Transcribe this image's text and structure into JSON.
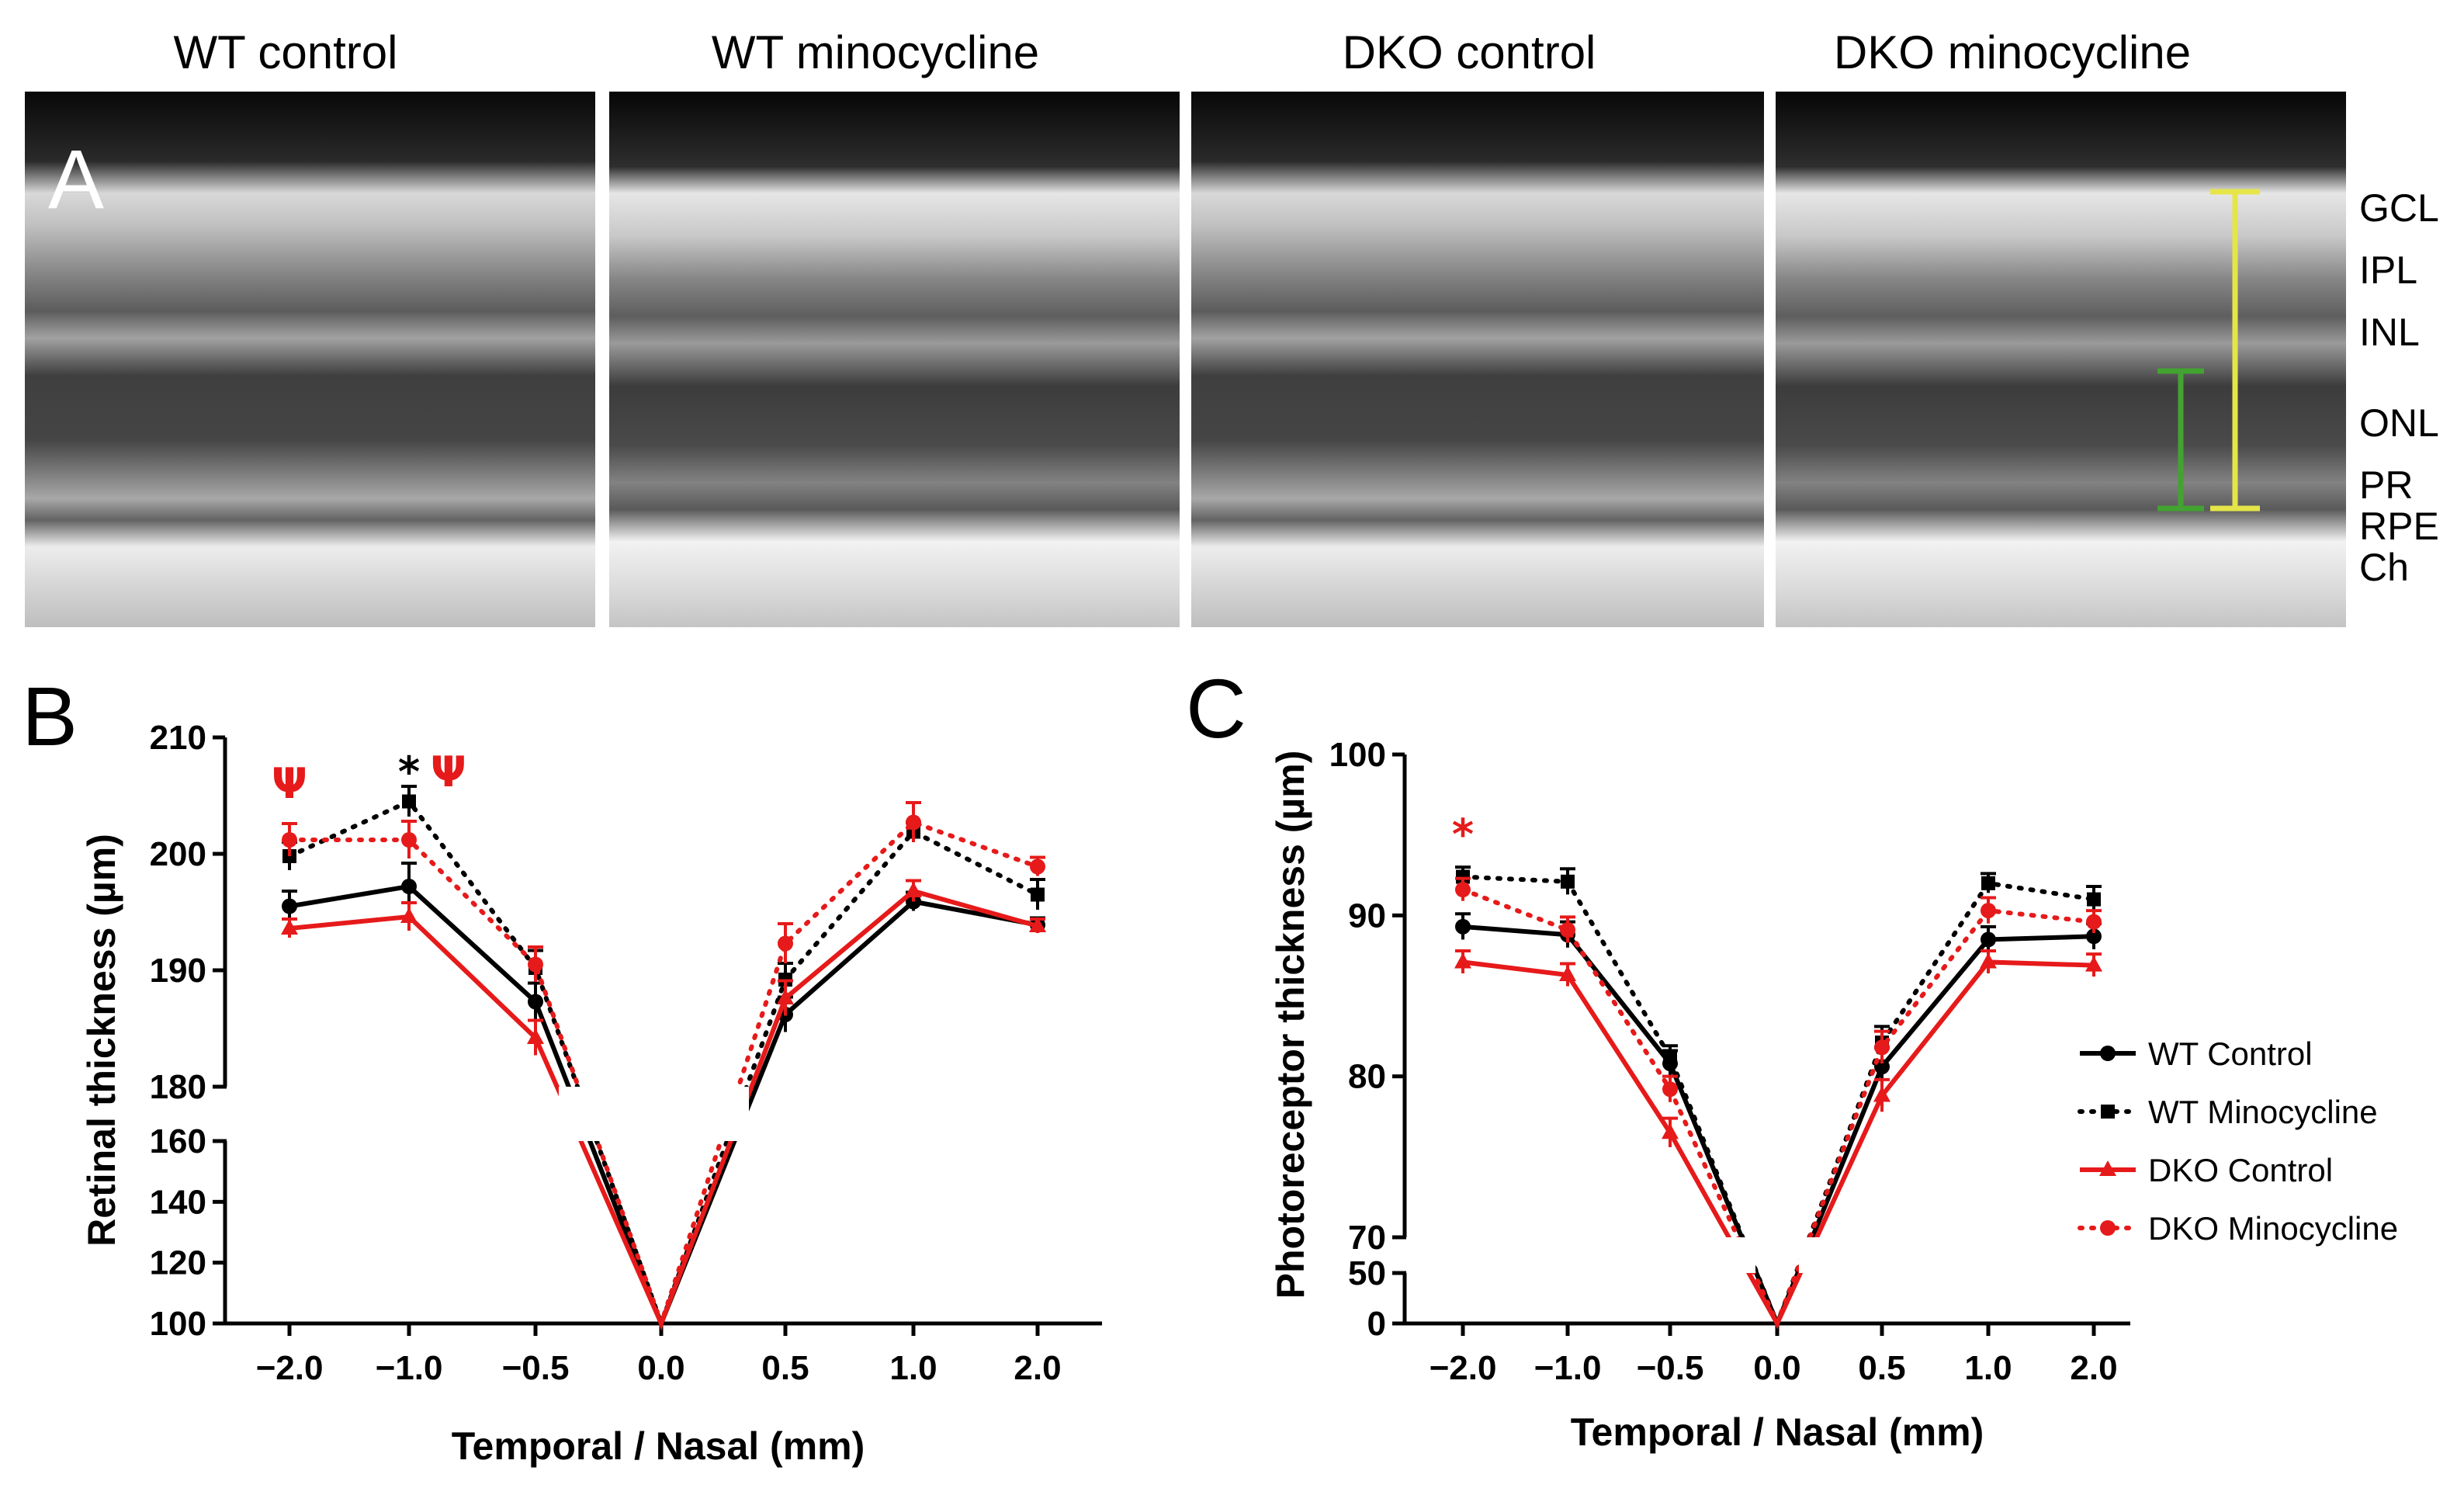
{
  "panelA": {
    "letter": "A",
    "titles": [
      "WT control",
      "WT minocycline",
      "DKO control",
      "DKO minocycline"
    ],
    "layers": [
      "GCL",
      "IPL",
      "INL",
      "ONL",
      "PR",
      "RPE",
      "Ch"
    ],
    "colors": {
      "retina_bar": "#e5e54a",
      "pr_bar": "#43a331"
    }
  },
  "chart_data": [
    {
      "panel": "B",
      "type": "line",
      "xlabel": "Temporal / Nasal (mm)",
      "ylabel": "Retinal thickness (µm)",
      "x": [
        -2.0,
        -1.0,
        -0.5,
        0.0,
        0.5,
        1.0,
        2.0
      ],
      "x_tick_labels": [
        "−2.0",
        "−1.0",
        "−0.5",
        "0.0",
        "0.5",
        "1.0",
        "2.0"
      ],
      "y_axis_break": {
        "upper_range": [
          180,
          210
        ],
        "lower_range": [
          100,
          160
        ]
      },
      "y_tick_labels": [
        "210",
        "200",
        "190",
        "180",
        "160",
        "140",
        "120",
        "100"
      ],
      "series": [
        {
          "name": "WT Control",
          "values": [
            195.5,
            197.2,
            187.3,
            100,
            186.2,
            195.9,
            193.9
          ],
          "errors": [
            1.3,
            2.0,
            1.6,
            0,
            1.5,
            0.8,
            0.6
          ]
        },
        {
          "name": "WT Minocycline",
          "values": [
            199.8,
            204.5,
            190.2,
            100,
            189.2,
            201.9,
            196.5
          ],
          "errors": [
            1.2,
            1.3,
            1.5,
            0,
            1.4,
            0.8,
            1.3
          ]
        },
        {
          "name": "DKO Control",
          "values": [
            193.6,
            194.6,
            184.2,
            100,
            187.6,
            196.8,
            193.8
          ],
          "errors": [
            0.8,
            1.2,
            1.5,
            0,
            1.5,
            0.9,
            0.6
          ]
        },
        {
          "name": "DKO Minocycline",
          "values": [
            201.2,
            201.2,
            190.5,
            100,
            192.3,
            202.7,
            198.9
          ],
          "errors": [
            1.4,
            1.6,
            1.5,
            0,
            1.7,
            1.7,
            0.8
          ]
        }
      ],
      "annotations": [
        {
          "text": "Ψ",
          "x": -2.0,
          "y": 206,
          "color": "#e61a1a"
        },
        {
          "text": "*",
          "x": -1.0,
          "y": 207,
          "color": "#000000"
        },
        {
          "text": "Ψ",
          "x": -0.67,
          "y": 207,
          "color": "#e61a1a"
        }
      ]
    },
    {
      "panel": "C",
      "type": "line",
      "xlabel": "Temporal / Nasal (mm)",
      "ylabel": "Photoreceptor thickness (µm)",
      "x": [
        -2.0,
        -1.0,
        -0.5,
        0.0,
        0.5,
        1.0,
        2.0
      ],
      "x_tick_labels": [
        "−2.0",
        "−1.0",
        "−0.5",
        "0.0",
        "0.5",
        "1.0",
        "2.0"
      ],
      "y_axis_break": {
        "upper_range": [
          70,
          100
        ],
        "lower_range": [
          0,
          50
        ]
      },
      "y_tick_labels": [
        "100",
        "90",
        "80",
        "70",
        "50",
        "0"
      ],
      "series": [
        {
          "name": "WT Control",
          "values": [
            89.3,
            88.8,
            80.8,
            0,
            80.6,
            88.5,
            88.7
          ],
          "errors": [
            0.8,
            0.8,
            0.8,
            0,
            1.2,
            0.8,
            0.8
          ]
        },
        {
          "name": "WT Minocycline",
          "values": [
            92.4,
            92.1,
            81.2,
            0,
            82.1,
            92.0,
            91.0
          ],
          "errors": [
            0.6,
            0.8,
            0.7,
            0,
            1.0,
            0.6,
            0.8
          ]
        },
        {
          "name": "DKO Control",
          "values": [
            87.1,
            86.3,
            76.5,
            0,
            78.8,
            87.1,
            86.9
          ],
          "errors": [
            0.7,
            0.7,
            0.9,
            0,
            1.0,
            0.7,
            0.7
          ]
        },
        {
          "name": "DKO Minocycline",
          "values": [
            91.6,
            89.1,
            79.2,
            0,
            81.8,
            90.3,
            89.6
          ],
          "errors": [
            0.7,
            0.8,
            0.8,
            0,
            1.0,
            0.8,
            0.7
          ]
        }
      ],
      "annotations": [
        {
          "text": "*",
          "x": -2.0,
          "y": 95,
          "color": "#e61a1a"
        }
      ],
      "legend": {
        "placement": "right",
        "entries": [
          "WT Control",
          "WT Minocycline",
          "DKO Control",
          "DKO Minocycline"
        ]
      }
    }
  ],
  "series_style": {
    "WT Control": {
      "color": "#000000",
      "dash": "solid",
      "marker": "circle"
    },
    "WT Minocycline": {
      "color": "#000000",
      "dash": "dotted",
      "marker": "square"
    },
    "DKO Control": {
      "color": "#e61a1a",
      "dash": "solid",
      "marker": "triangle"
    },
    "DKO Minocycline": {
      "color": "#e61a1a",
      "dash": "dotted",
      "marker": "circle"
    }
  }
}
